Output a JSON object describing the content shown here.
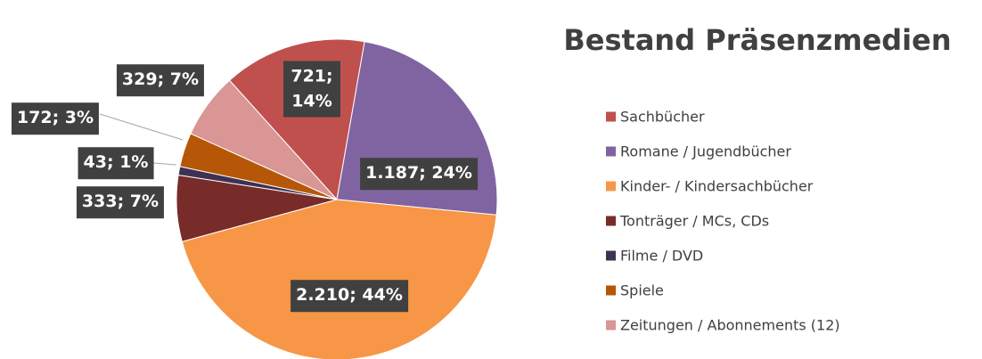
{
  "chart_data": {
    "type": "pie",
    "title": "Bestand Präsenzmedien",
    "categories": [
      "Sachbücher",
      "Romane / Jugendbücher",
      "Kinder- / Kindersachbücher",
      "Tonträger / MCs, CDs",
      "Filme / DVD",
      "Spiele",
      "Zeitungen / Abonnements (12)"
    ],
    "values": [
      721,
      1187,
      2210,
      333,
      43,
      172,
      329
    ],
    "value_labels": [
      "721; 14%",
      "1.187; 24%",
      "2.210; 44%",
      "333; 7%",
      "43; 1%",
      "172; 3%",
      "329; 7%"
    ],
    "colors": [
      "#c0504d",
      "#8064a2",
      "#f79646",
      "#772c2a",
      "#3f3151",
      "#b65708",
      "#d99694"
    ],
    "legend": "right"
  }
}
